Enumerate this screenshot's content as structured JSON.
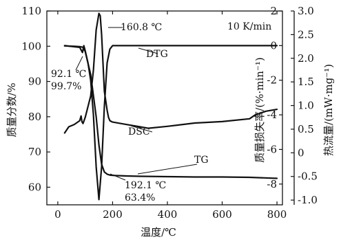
{
  "chart_data": {
    "type": "line",
    "title": "",
    "grid": false,
    "xlabel": "温度/℃",
    "x_ticks": [
      "0",
      "200",
      "400",
      "600",
      "800"
    ],
    "xlim": [
      -40,
      820
    ],
    "left_axis": {
      "label": "质量分数/%",
      "lim": [
        55,
        110
      ],
      "ticks": [
        "60",
        "70",
        "80",
        "90",
        "100",
        "110"
      ]
    },
    "right_axis_1": {
      "label": "质量损失率/(%·min⁻¹)",
      "lim": [
        -9.2,
        2
      ],
      "ticks": [
        "2",
        "0",
        "-2",
        "-4",
        "-6",
        "-8"
      ]
    },
    "right_axis_2": {
      "label": "热流量/(mW·mg⁻¹)",
      "lim": [
        -1.1,
        3.0
      ],
      "ticks": [
        "3.0",
        "2.5",
        "2.0",
        "1.5",
        "1.0",
        "0.5",
        "0",
        "-0.5",
        "-1.0"
      ]
    },
    "rate_annotation": "10 K/min",
    "annotations": [
      {
        "lines": [
          "92.1 ℃",
          "99.7%"
        ]
      },
      {
        "lines": [
          "160.8 ℃"
        ]
      },
      {
        "lines": [
          "192.1 ℃",
          "63.4%"
        ]
      }
    ],
    "series": [
      {
        "name": "TG",
        "axis": "left",
        "x": [
          25,
          60,
          80,
          92,
          100,
          120,
          140,
          150,
          160,
          170,
          180,
          192,
          210,
          250,
          300,
          400,
          500,
          600,
          700,
          800
        ],
        "y": [
          100.1,
          100.0,
          99.9,
          99.7,
          98.5,
          92.0,
          80.0,
          72.0,
          66.5,
          64.3,
          63.7,
          63.4,
          63.3,
          63.2,
          63.1,
          63.0,
          62.9,
          62.9,
          62.8,
          62.5
        ]
      },
      {
        "name": "DTG",
        "axis": "right1",
        "x": [
          25,
          80,
          90,
          95,
          100,
          110,
          120,
          130,
          140,
          150,
          160,
          170,
          180,
          190,
          200,
          300,
          400,
          500,
          600,
          700,
          800
        ],
        "y": [
          0.0,
          -0.1,
          -0.4,
          0.0,
          -0.3,
          -1.0,
          -2.0,
          -4.0,
          -7.0,
          -8.9,
          -7.0,
          -3.5,
          -1.0,
          -0.2,
          0.0,
          0.0,
          0.0,
          0.0,
          0.0,
          0.0,
          0.0
        ]
      },
      {
        "name": "DSC",
        "axis": "right2",
        "x": [
          25,
          40,
          60,
          80,
          85,
          88,
          92,
          100,
          120,
          130,
          140,
          150,
          155,
          160,
          165,
          170,
          180,
          185,
          190,
          200,
          250,
          300,
          330,
          400,
          500,
          600,
          700,
          720,
          760,
          800
        ],
        "y": [
          0.42,
          0.55,
          0.6,
          0.68,
          0.78,
          0.66,
          0.62,
          0.75,
          1.2,
          1.75,
          2.6,
          2.95,
          2.9,
          2.5,
          1.9,
          1.3,
          0.9,
          0.75,
          0.68,
          0.65,
          0.6,
          0.55,
          0.52,
          0.56,
          0.63,
          0.66,
          0.72,
          0.8,
          0.88,
          0.92
        ]
      }
    ]
  }
}
